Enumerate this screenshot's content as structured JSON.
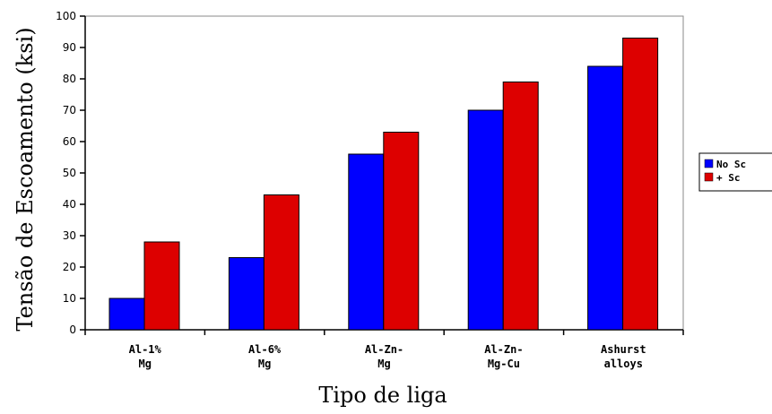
{
  "chart_data": {
    "type": "bar",
    "categories": [
      [
        "Al-1%",
        "Mg"
      ],
      [
        "Al-6%",
        "Mg"
      ],
      [
        "Al-Zn-",
        "Mg"
      ],
      [
        "Al-Zn-",
        "Mg-Cu"
      ],
      [
        "Ashurst",
        "alloys"
      ]
    ],
    "series": [
      {
        "name": "No Sc",
        "values": [
          10,
          23,
          56,
          70,
          84
        ],
        "color": "#0000ff"
      },
      {
        "name": "+ Sc",
        "values": [
          28,
          43,
          63,
          79,
          93
        ],
        "color": "#dd0000"
      }
    ],
    "xlabel": "Tipo de liga",
    "ylabel": "Tensão de Escoamento (ksi)",
    "ylim": [
      0,
      100
    ],
    "yticks": [
      "0",
      "10",
      "20",
      "30",
      "40",
      "50",
      "60",
      "70",
      "80",
      "90",
      "100"
    ],
    "legend_position": "right",
    "grid": false
  }
}
